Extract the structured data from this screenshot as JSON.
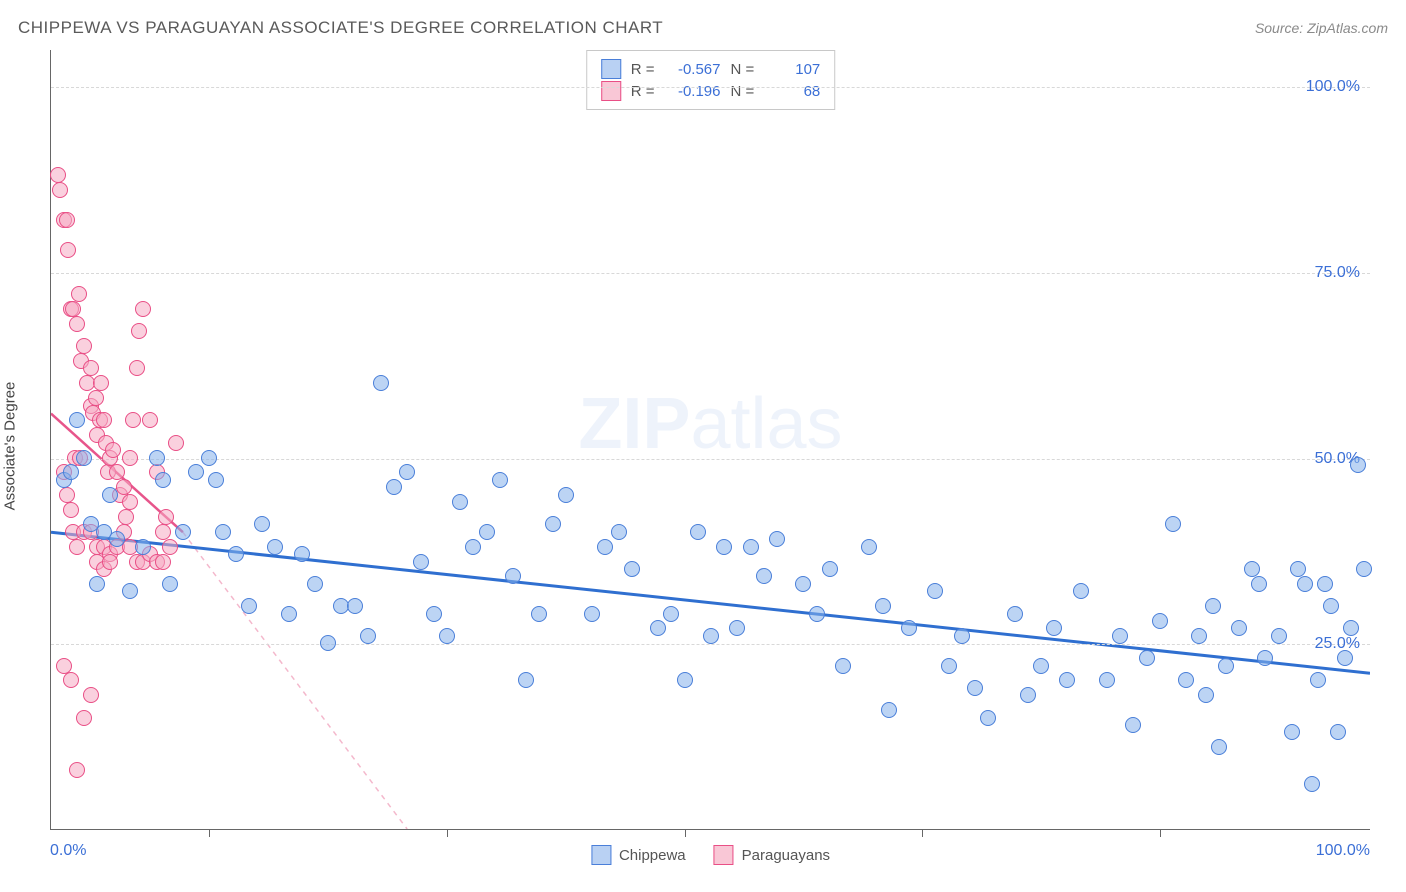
{
  "title": "CHIPPEWA VS PARAGUAYAN ASSOCIATE'S DEGREE CORRELATION CHART",
  "source": "Source: ZipAtlas.com",
  "watermark": {
    "bold": "ZIP",
    "light": "atlas"
  },
  "y_axis_title": "Associate's Degree",
  "axis": {
    "x_min_label": "0.0%",
    "x_max_label": "100.0%",
    "y_ticks": [
      {
        "pct": 25,
        "label": "25.0%"
      },
      {
        "pct": 50,
        "label": "50.0%"
      },
      {
        "pct": 75,
        "label": "75.0%"
      },
      {
        "pct": 100,
        "label": "100.0%"
      }
    ],
    "x_tick_positions_pct": [
      12,
      30,
      48,
      66,
      84
    ],
    "xlim": [
      0,
      100
    ],
    "ylim": [
      0,
      105
    ],
    "label_color": "#3b6fd6",
    "grid_color": "#d8d8d8"
  },
  "stats_legend": {
    "rows": [
      {
        "swatch_fill": "#b9d1f3",
        "swatch_border": "#4a7fd9",
        "r_label": "R =",
        "r": "-0.567",
        "n_label": "N =",
        "n": "107"
      },
      {
        "swatch_fill": "#f9c7d6",
        "swatch_border": "#e94f86",
        "r_label": "R =",
        "r": "-0.196",
        "n_label": "N =",
        "n": "68"
      }
    ]
  },
  "series_legend": [
    {
      "swatch_fill": "#b9d1f3",
      "swatch_border": "#4a7fd9",
      "label": "Chippewa"
    },
    {
      "swatch_fill": "#f9c7d6",
      "swatch_border": "#e94f86",
      "label": "Paraguayans"
    }
  ],
  "series": {
    "chippewa": {
      "color_fill": "rgba(133,176,235,0.55)",
      "color_stroke": "#4a7fd9",
      "trend": {
        "x1": 0,
        "y1": 40,
        "x2": 100,
        "y2": 21,
        "stroke": "#2f6fd0",
        "width": 3
      },
      "points": [
        [
          1,
          47
        ],
        [
          1.5,
          48
        ],
        [
          2,
          55
        ],
        [
          2.5,
          50
        ],
        [
          3,
          41
        ],
        [
          3.5,
          33
        ],
        [
          4,
          40
        ],
        [
          4.5,
          45
        ],
        [
          5,
          39
        ],
        [
          6,
          32
        ],
        [
          7,
          38
        ],
        [
          8,
          50
        ],
        [
          8.5,
          47
        ],
        [
          9,
          33
        ],
        [
          10,
          40
        ],
        [
          11,
          48
        ],
        [
          12,
          50
        ],
        [
          12.5,
          47
        ],
        [
          13,
          40
        ],
        [
          14,
          37
        ],
        [
          15,
          30
        ],
        [
          16,
          41
        ],
        [
          17,
          38
        ],
        [
          18,
          29
        ],
        [
          19,
          37
        ],
        [
          20,
          33
        ],
        [
          21,
          25
        ],
        [
          22,
          30
        ],
        [
          23,
          30
        ],
        [
          24,
          26
        ],
        [
          25,
          60
        ],
        [
          26,
          46
        ],
        [
          27,
          48
        ],
        [
          28,
          36
        ],
        [
          29,
          29
        ],
        [
          30,
          26
        ],
        [
          31,
          44
        ],
        [
          32,
          38
        ],
        [
          33,
          40
        ],
        [
          34,
          47
        ],
        [
          35,
          34
        ],
        [
          36,
          20
        ],
        [
          37,
          29
        ],
        [
          38,
          41
        ],
        [
          39,
          45
        ],
        [
          41,
          29
        ],
        [
          42,
          38
        ],
        [
          43,
          40
        ],
        [
          44,
          35
        ],
        [
          46,
          27
        ],
        [
          47,
          29
        ],
        [
          48,
          20
        ],
        [
          49,
          40
        ],
        [
          50,
          26
        ],
        [
          51,
          38
        ],
        [
          52,
          27
        ],
        [
          53,
          38
        ],
        [
          54,
          34
        ],
        [
          55,
          39
        ],
        [
          57,
          33
        ],
        [
          58,
          29
        ],
        [
          59,
          35
        ],
        [
          60,
          22
        ],
        [
          62,
          38
        ],
        [
          63,
          30
        ],
        [
          63.5,
          16
        ],
        [
          65,
          27
        ],
        [
          67,
          32
        ],
        [
          68,
          22
        ],
        [
          69,
          26
        ],
        [
          70,
          19
        ],
        [
          71,
          15
        ],
        [
          73,
          29
        ],
        [
          74,
          18
        ],
        [
          75,
          22
        ],
        [
          76,
          27
        ],
        [
          77,
          20
        ],
        [
          78,
          32
        ],
        [
          80,
          20
        ],
        [
          81,
          26
        ],
        [
          82,
          14
        ],
        [
          83,
          23
        ],
        [
          84,
          28
        ],
        [
          85,
          41
        ],
        [
          86,
          20
        ],
        [
          87,
          26
        ],
        [
          87.5,
          18
        ],
        [
          88,
          30
        ],
        [
          89,
          22
        ],
        [
          90,
          27
        ],
        [
          91,
          35
        ],
        [
          91.5,
          33
        ],
        [
          92,
          23
        ],
        [
          93,
          26
        ],
        [
          94,
          13
        ],
        [
          94.5,
          35
        ],
        [
          95,
          33
        ],
        [
          96,
          20
        ],
        [
          97,
          30
        ],
        [
          98,
          23
        ],
        [
          99,
          49
        ],
        [
          99.5,
          35
        ],
        [
          98.5,
          27
        ],
        [
          97.5,
          13
        ],
        [
          96.5,
          33
        ],
        [
          95.5,
          6
        ],
        [
          88.5,
          11
        ]
      ]
    },
    "paraguayans": {
      "color_fill": "rgba(245,170,195,0.55)",
      "color_stroke": "#e94f86",
      "trend_solid": {
        "x1": 0,
        "y1": 56,
        "x2": 10,
        "y2": 40,
        "stroke": "#e7558b",
        "width": 2.5
      },
      "trend_dash": {
        "x1": 10,
        "y1": 40,
        "x2": 27,
        "y2": 0,
        "stroke": "#f4b8cc",
        "width": 1.5,
        "dash": "5,5"
      },
      "points": [
        [
          0.5,
          88
        ],
        [
          0.7,
          86
        ],
        [
          1,
          82
        ],
        [
          1.2,
          82
        ],
        [
          1.5,
          70
        ],
        [
          1.7,
          70
        ],
        [
          2,
          68
        ],
        [
          2.1,
          72
        ],
        [
          2.3,
          63
        ],
        [
          2.5,
          65
        ],
        [
          2.7,
          60
        ],
        [
          3,
          62
        ],
        [
          3,
          57
        ],
        [
          3.2,
          56
        ],
        [
          3.4,
          58
        ],
        [
          3.5,
          53
        ],
        [
          3.7,
          55
        ],
        [
          3.8,
          60
        ],
        [
          4,
          55
        ],
        [
          4.2,
          52
        ],
        [
          4.3,
          48
        ],
        [
          4.5,
          50
        ],
        [
          4.7,
          51
        ],
        [
          5,
          48
        ],
        [
          5.2,
          45
        ],
        [
          5.5,
          46
        ],
        [
          5.7,
          42
        ],
        [
          6,
          44
        ],
        [
          6,
          50
        ],
        [
          6.2,
          55
        ],
        [
          6.5,
          62
        ],
        [
          6.7,
          67
        ],
        [
          7,
          70
        ],
        [
          7.5,
          55
        ],
        [
          8,
          48
        ],
        [
          8.5,
          40
        ],
        [
          8.7,
          42
        ],
        [
          9,
          38
        ],
        [
          9.5,
          52
        ],
        [
          1.3,
          78
        ],
        [
          1,
          48
        ],
        [
          1.2,
          45
        ],
        [
          1.5,
          43
        ],
        [
          1.7,
          40
        ],
        [
          2,
          38
        ],
        [
          2.5,
          40
        ],
        [
          3,
          40
        ],
        [
          3.5,
          38
        ],
        [
          4,
          38
        ],
        [
          4.5,
          37
        ],
        [
          5,
          38
        ],
        [
          5.5,
          40
        ],
        [
          6,
          38
        ],
        [
          1,
          22
        ],
        [
          1.5,
          20
        ],
        [
          2,
          8
        ],
        [
          2.5,
          15
        ],
        [
          3,
          18
        ],
        [
          3.5,
          36
        ],
        [
          4,
          35
        ],
        [
          4.5,
          36
        ],
        [
          1.8,
          50
        ],
        [
          2.2,
          50
        ],
        [
          6.5,
          36
        ],
        [
          7,
          36
        ],
        [
          7.5,
          37
        ],
        [
          8,
          36
        ],
        [
          8.5,
          36
        ]
      ]
    }
  }
}
